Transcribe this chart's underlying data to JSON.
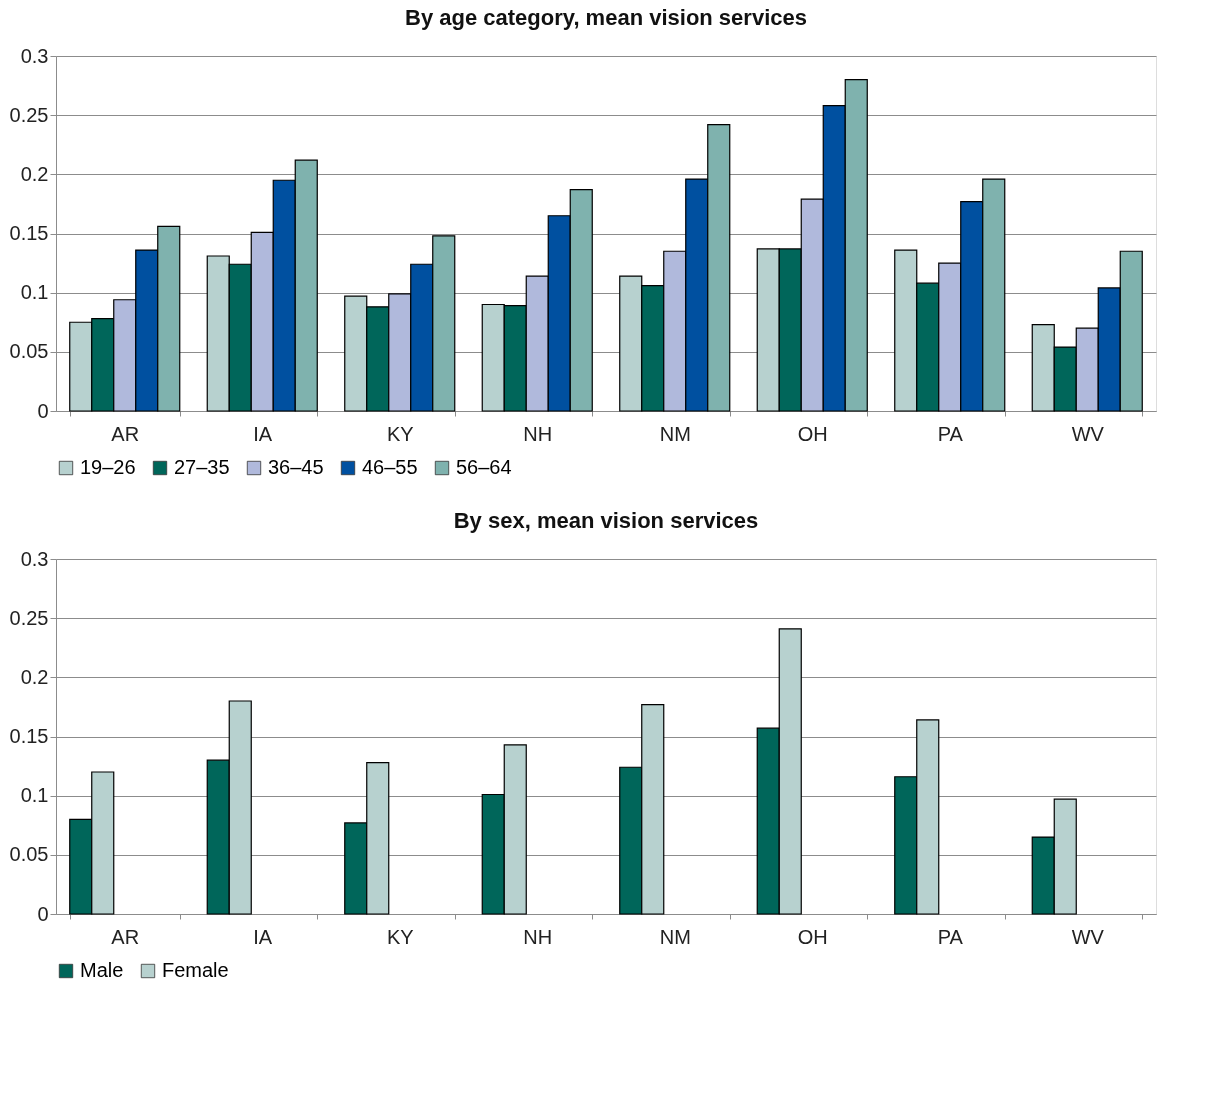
{
  "chart_data": [
    {
      "type": "bar",
      "title": "By age category, mean vision services",
      "categories": [
        "AR",
        "IA",
        "KY",
        "NH",
        "NM",
        "OH",
        "PA",
        "WV"
      ],
      "ylim": [
        0,
        0.3
      ],
      "yticks": [
        0,
        0.05,
        0.1,
        0.15,
        0.2,
        0.25,
        0.3
      ],
      "grid": "y",
      "legend": "bottom",
      "series": [
        {
          "name": "19–26",
          "color": "#b7d1cf",
          "values": [
            0.075,
            0.131,
            0.097,
            0.09,
            0.114,
            0.137,
            0.136,
            0.073
          ]
        },
        {
          "name": "27–35",
          "color": "#00665a",
          "values": [
            0.078,
            0.124,
            0.088,
            0.089,
            0.106,
            0.137,
            0.108,
            0.054
          ]
        },
        {
          "name": "36–45",
          "color": "#b0b9dc",
          "values": [
            0.094,
            0.151,
            0.099,
            0.114,
            0.135,
            0.179,
            0.125,
            0.07
          ]
        },
        {
          "name": "46–55",
          "color": "#0050a0",
          "values": [
            0.136,
            0.195,
            0.124,
            0.165,
            0.196,
            0.258,
            0.177,
            0.104
          ]
        },
        {
          "name": "56–64",
          "color": "#7fb2ae",
          "values": [
            0.156,
            0.212,
            0.148,
            0.187,
            0.242,
            0.28,
            0.196,
            0.135
          ]
        }
      ]
    },
    {
      "type": "bar",
      "title": "By sex, mean vision services",
      "categories": [
        "AR",
        "IA",
        "KY",
        "NH",
        "NM",
        "OH",
        "PA",
        "WV"
      ],
      "ylim": [
        0,
        0.3
      ],
      "yticks": [
        0,
        0.05,
        0.1,
        0.15,
        0.2,
        0.25,
        0.3
      ],
      "grid": "y",
      "legend": "bottom",
      "series": [
        {
          "name": "Male",
          "color": "#00665a",
          "values": [
            0.08,
            0.13,
            0.077,
            0.101,
            0.124,
            0.157,
            0.116,
            0.065
          ]
        },
        {
          "name": "Female",
          "color": "#b7d1cf",
          "values": [
            0.12,
            0.18,
            0.128,
            0.143,
            0.177,
            0.241,
            0.164,
            0.097
          ]
        }
      ]
    }
  ]
}
